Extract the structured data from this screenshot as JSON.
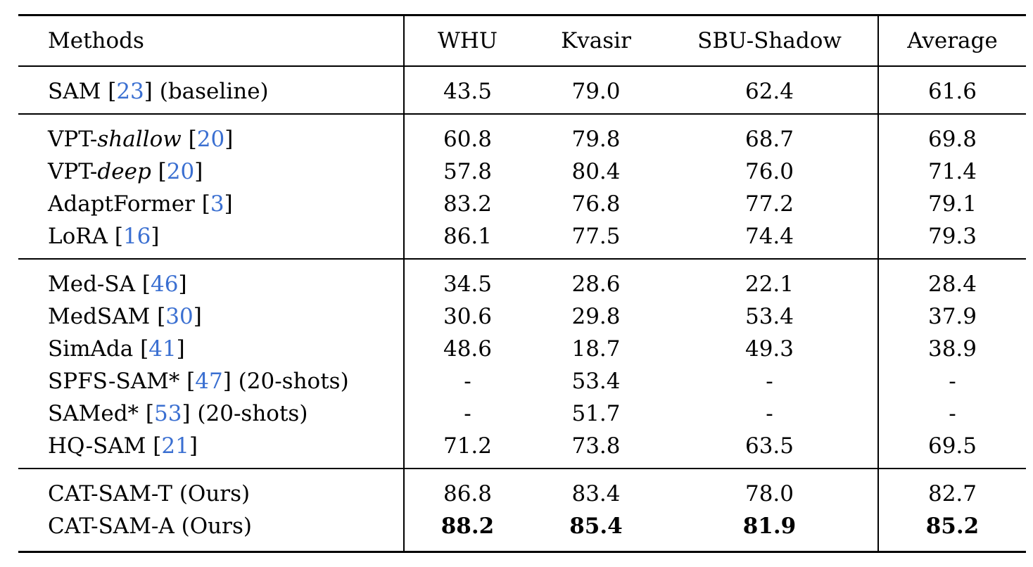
{
  "headers": {
    "methods": "Methods",
    "whu": "WHU",
    "kvasir": "Kvasir",
    "sbu": "SBU-Shadow",
    "average": "Average"
  },
  "rows": [
    {
      "pre": "SAM [",
      "em": "",
      "cite": "23",
      "post": "] (baseline)",
      "whu": "43.5",
      "kvasir": "79.0",
      "sbu": "62.4",
      "avg": "61.6"
    },
    {
      "pre": "VPT-",
      "em": "shallow",
      "mid": " [",
      "cite": "20",
      "post": "]",
      "whu": "60.8",
      "kvasir": "79.8",
      "sbu": "68.7",
      "avg": "69.8"
    },
    {
      "pre": "VPT-",
      "em": "deep",
      "mid": " [",
      "cite": "20",
      "post": "]",
      "whu": "57.8",
      "kvasir": "80.4",
      "sbu": "76.0",
      "avg": "71.4"
    },
    {
      "pre": "AdaptFormer [",
      "cite": "3",
      "post": "]",
      "whu": "83.2",
      "kvasir": "76.8",
      "sbu": "77.2",
      "avg": "79.1"
    },
    {
      "pre": "LoRA [",
      "cite": "16",
      "post": "]",
      "whu": "86.1",
      "kvasir": "77.5",
      "sbu": "74.4",
      "avg": "79.3"
    },
    {
      "pre": "Med-SA [",
      "cite": "46",
      "post": "]",
      "whu": "34.5",
      "kvasir": "28.6",
      "sbu": "22.1",
      "avg": "28.4"
    },
    {
      "pre": "MedSAM [",
      "cite": "30",
      "post": "]",
      "whu": "30.6",
      "kvasir": "29.8",
      "sbu": "53.4",
      "avg": "37.9"
    },
    {
      "pre": "SimAda [",
      "cite": "41",
      "post": "]",
      "whu": "48.6",
      "kvasir": "18.7",
      "sbu": "49.3",
      "avg": "38.9"
    },
    {
      "pre": "SPFS-SAM* [",
      "cite": "47",
      "post": "] (20-shots)",
      "whu": "-",
      "kvasir": "53.4",
      "sbu": "-",
      "avg": "-"
    },
    {
      "pre": "SAMed* [",
      "cite": "53",
      "post": "] (20-shots)",
      "whu": "-",
      "kvasir": "51.7",
      "sbu": "-",
      "avg": "-"
    },
    {
      "pre": "HQ-SAM [",
      "cite": "21",
      "post": "]",
      "whu": "71.2",
      "kvasir": "73.8",
      "sbu": "63.5",
      "avg": "69.5"
    },
    {
      "pre": "CAT-SAM-T (Ours)",
      "whu": "86.8",
      "kvasir": "83.4",
      "sbu": "78.0",
      "avg": "82.7"
    },
    {
      "pre": "CAT-SAM-A (Ours)",
      "whu": "88.2",
      "kvasir": "85.4",
      "sbu": "81.9",
      "avg": "85.2"
    }
  ]
}
